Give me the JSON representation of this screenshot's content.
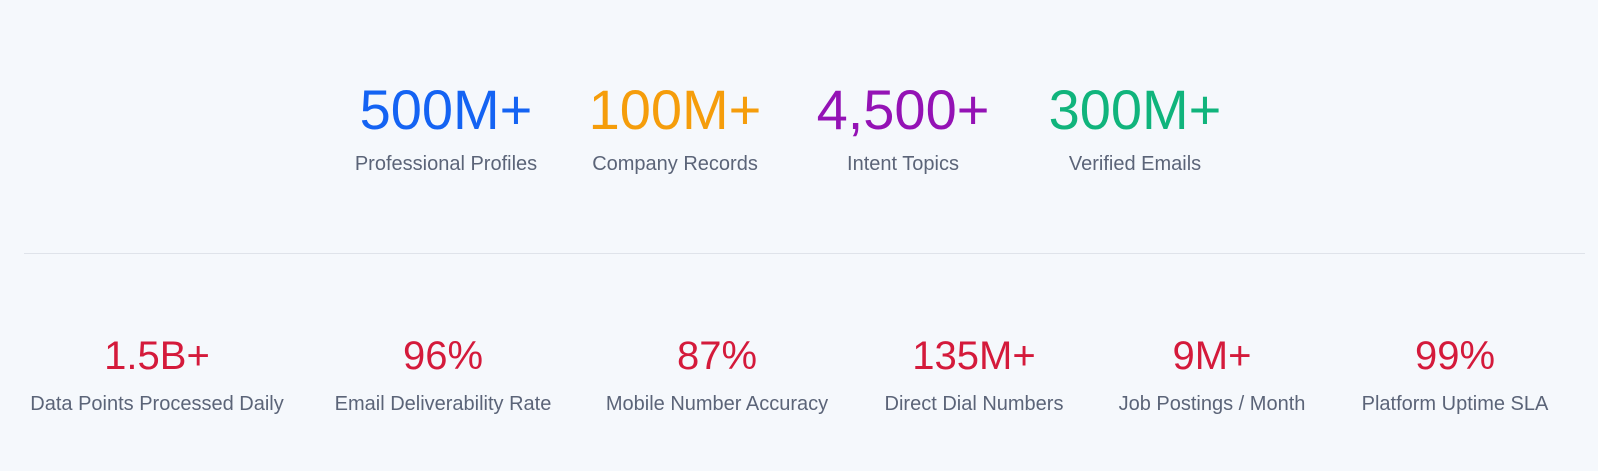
{
  "top_stats": [
    {
      "value": "500M+",
      "label": "Professional Profiles"
    },
    {
      "value": "100M+",
      "label": "Company Records"
    },
    {
      "value": "4,500+",
      "label": "Intent Topics"
    },
    {
      "value": "300M+",
      "label": "Verified Emails"
    }
  ],
  "bottom_stats": [
    {
      "value": "1.5B+",
      "label": "Data Points Processed Daily"
    },
    {
      "value": "96%",
      "label": "Email Deliverability Rate"
    },
    {
      "value": "87%",
      "label": "Mobile Number Accuracy"
    },
    {
      "value": "135M+",
      "label": "Direct Dial Numbers"
    },
    {
      "value": "9M+",
      "label": "Job Postings / Month"
    },
    {
      "value": "99%",
      "label": "Platform Uptime SLA"
    }
  ]
}
